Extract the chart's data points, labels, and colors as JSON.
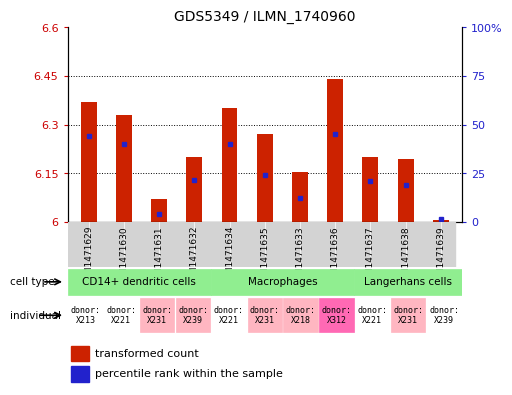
{
  "title": "GDS5349 / ILMN_1740960",
  "samples": [
    "GSM1471629",
    "GSM1471630",
    "GSM1471631",
    "GSM1471632",
    "GSM1471634",
    "GSM1471635",
    "GSM1471633",
    "GSM1471636",
    "GSM1471637",
    "GSM1471638",
    "GSM1471639"
  ],
  "red_values": [
    6.37,
    6.33,
    6.07,
    6.2,
    6.35,
    6.27,
    6.155,
    6.44,
    6.2,
    6.195,
    6.005
  ],
  "blue_values": [
    6.265,
    6.24,
    6.025,
    6.13,
    6.24,
    6.145,
    6.075,
    6.27,
    6.125,
    6.115,
    6.01
  ],
  "ylim": [
    6.0,
    6.6
  ],
  "yticks": [
    6.0,
    6.15,
    6.3,
    6.45,
    6.6
  ],
  "ytick_labels": [
    "6",
    "6.15",
    "6.3",
    "6.45",
    "6.6"
  ],
  "right_yticks": [
    0.0,
    0.25,
    0.5,
    0.75,
    1.0
  ],
  "right_ytick_labels": [
    "0",
    "25",
    "50",
    "75",
    "100%"
  ],
  "hgrid_at": [
    6.15,
    6.3,
    6.45
  ],
  "cell_types": [
    {
      "label": "CD14+ dendritic cells",
      "start": 0,
      "end": 3
    },
    {
      "label": "Macrophages",
      "start": 4,
      "end": 7
    },
    {
      "label": "Langerhans cells",
      "start": 8,
      "end": 10
    }
  ],
  "cell_type_color": "#90EE90",
  "individuals": [
    {
      "label": "donor:\nX213",
      "idx": 0,
      "color": "#FFFFFF"
    },
    {
      "label": "donor:\nX221",
      "idx": 1,
      "color": "#FFFFFF"
    },
    {
      "label": "donor:\nX231",
      "idx": 2,
      "color": "#FFB6C1"
    },
    {
      "label": "donor:\nX239",
      "idx": 3,
      "color": "#FFB6C1"
    },
    {
      "label": "donor:\nX221",
      "idx": 4,
      "color": "#FFFFFF"
    },
    {
      "label": "donor:\nX231",
      "idx": 5,
      "color": "#FFB6C1"
    },
    {
      "label": "donor:\nX218",
      "idx": 6,
      "color": "#FFB6C1"
    },
    {
      "label": "donor:\nX312",
      "idx": 7,
      "color": "#FF69B4"
    },
    {
      "label": "donor:\nX221",
      "idx": 8,
      "color": "#FFFFFF"
    },
    {
      "label": "donor:\nX231",
      "idx": 9,
      "color": "#FFB6C1"
    },
    {
      "label": "donor:\nX239",
      "idx": 10,
      "color": "#FFFFFF"
    }
  ],
  "bar_color": "#CC2200",
  "dot_color": "#2222CC",
  "bar_width": 0.45,
  "left_tick_color": "#CC0000",
  "right_tick_color": "#2222CC",
  "sample_label_bg": "#D3D3D3",
  "legend_red_label": "transformed count",
  "legend_blue_label": "percentile rank within the sample"
}
